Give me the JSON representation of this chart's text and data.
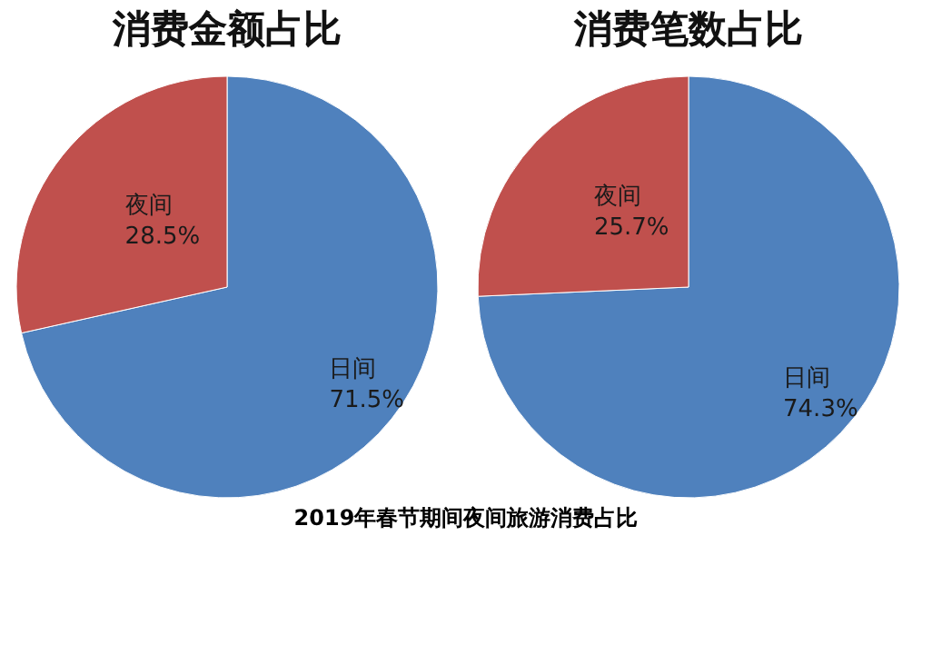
{
  "chart_data": [
    {
      "type": "pie",
      "title": "消费金额占比",
      "categories": [
        "日间",
        "夜间"
      ],
      "values": [
        71.5,
        28.5
      ],
      "colors": [
        "#4f81bd",
        "#c0504d"
      ],
      "value_labels": [
        "71.5%",
        "28.5%"
      ],
      "annotations": [
        "2019年春节期间夜间旅游消费占比"
      ]
    },
    {
      "type": "pie",
      "title": "消费笔数占比",
      "categories": [
        "日间",
        "夜间"
      ],
      "values": [
        74.3,
        25.7
      ],
      "colors": [
        "#4f81bd",
        "#c0504d"
      ],
      "value_labels": [
        "74.3%",
        "25.7%"
      ]
    }
  ]
}
